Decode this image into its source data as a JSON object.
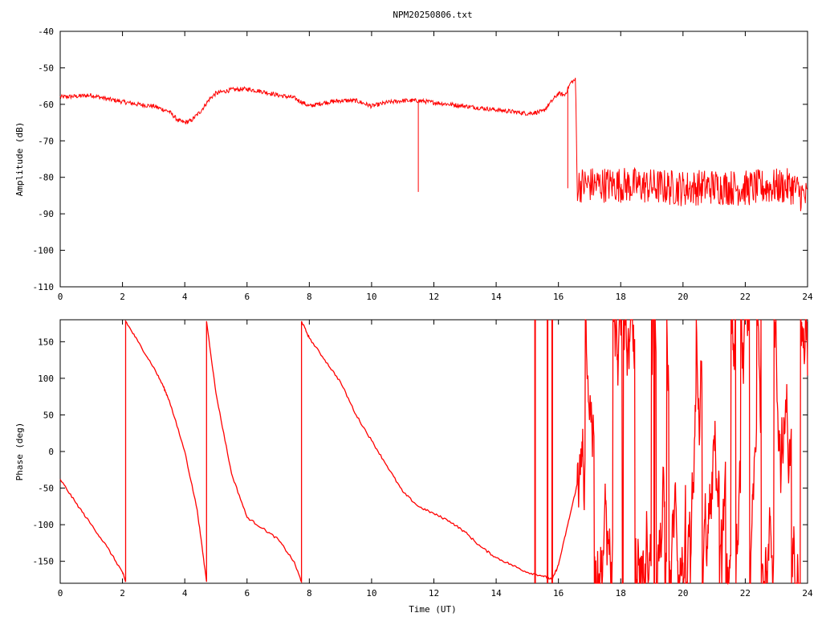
{
  "title": "NPM20250806.txt",
  "colors": {
    "series": "#ff0000",
    "axis": "#000000",
    "grid": "#000000",
    "background": "#ffffff"
  },
  "chart_data": [
    {
      "type": "line",
      "ylabel": "Amplitude (dB)",
      "xlabel": "",
      "xlim": [
        0,
        24
      ],
      "ylim": [
        -110,
        -40
      ],
      "x_ticks": [
        "0",
        "2",
        "4",
        "6",
        "8",
        "10",
        "12",
        "14",
        "16",
        "18",
        "20",
        "22",
        "24"
      ],
      "y_ticks": [
        "-40",
        "-50",
        "-60",
        "-70",
        "-80",
        "-90",
        "-100",
        "-110"
      ],
      "grid": false,
      "legend": "none",
      "series": [
        {
          "x": [
            0,
            0.5,
            1.0,
            1.5,
            2.0,
            2.5,
            3.0,
            3.5,
            3.8,
            4.0,
            4.2,
            4.5,
            4.8,
            5.0,
            5.5,
            6.0,
            6.5,
            7.0,
            7.5,
            8.0,
            8.5,
            9.0,
            9.5,
            10.0,
            10.5,
            11.0,
            11.5,
            12.0,
            12.5,
            13.0,
            13.5,
            14.0,
            14.5,
            15.0,
            15.5,
            15.8,
            16.0,
            16.2,
            16.4,
            16.55,
            16.6,
            17.0,
            18.0,
            19.0,
            20.0,
            21.0,
            22.0,
            23.0,
            23.5,
            24.0
          ],
          "y": [
            -58,
            -57.8,
            -57.5,
            -58.5,
            -59.3,
            -60,
            -60.5,
            -62,
            -64.5,
            -65,
            -64.5,
            -62,
            -58.5,
            -57,
            -56,
            -55.8,
            -56.5,
            -57.5,
            -58.2,
            -60.5,
            -59.5,
            -59,
            -59,
            -60.5,
            -59.5,
            -59,
            -59,
            -59.5,
            -60,
            -60.5,
            -61,
            -61.5,
            -62,
            -62.5,
            -62,
            -59,
            -57,
            -57.5,
            -54,
            -53.2,
            -82,
            -82,
            -82,
            -82.5,
            -83,
            -82.5,
            -83,
            -82.5,
            -82.5,
            -86
          ]
        }
      ]
    },
    {
      "type": "line",
      "ylabel": "Phase (deg)",
      "xlabel": "Time (UT)",
      "xlim": [
        0,
        24
      ],
      "ylim": [
        -180,
        180
      ],
      "x_ticks": [
        "0",
        "2",
        "4",
        "6",
        "8",
        "10",
        "12",
        "14",
        "16",
        "18",
        "20",
        "22",
        "24"
      ],
      "y_ticks": [
        "150",
        "100",
        "50",
        "0",
        "-50",
        "-100",
        "-150"
      ],
      "grid": false,
      "legend": "none",
      "series": [
        {
          "x": [
            0,
            0.5,
            1.0,
            1.5,
            2.0,
            2.1,
            2.1,
            2.5,
            3.0,
            3.3,
            3.5,
            4.0,
            4.4,
            4.7,
            4.7,
            5.0,
            5.5,
            6.0,
            6.5,
            7.0,
            7.5,
            7.75,
            7.75,
            8.0,
            8.5,
            9.0,
            9.5,
            10.0,
            10.5,
            11.0,
            11.5,
            12.0,
            12.5,
            13.0,
            13.5,
            14.0,
            14.5,
            15.0,
            15.5,
            15.8,
            16.0,
            16.3,
            16.6
          ],
          "y": [
            -38,
            -70,
            -100,
            -130,
            -165,
            -178,
            178,
            150,
            115,
            90,
            70,
            0,
            -80,
            -178,
            178,
            80,
            -30,
            -90,
            -105,
            -120,
            -150,
            -178,
            178,
            155,
            125,
            95,
            50,
            15,
            -20,
            -55,
            -75,
            -85,
            -95,
            -110,
            -130,
            -145,
            -155,
            -165,
            -170,
            -175,
            -155,
            -100,
            -45
          ]
        }
      ],
      "noisy_after": 16.6
    }
  ]
}
